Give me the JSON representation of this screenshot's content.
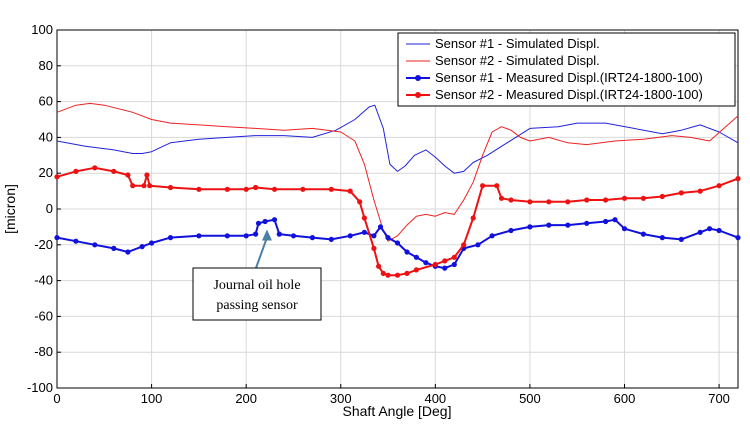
{
  "chart_data": {
    "type": "line",
    "xlabel": "Shaft Angle [Deg]",
    "ylabel": "[micron]",
    "xlim": [
      0,
      720
    ],
    "ylim": [
      -100,
      100
    ],
    "xticks": [
      0,
      100,
      200,
      300,
      400,
      500,
      600,
      700
    ],
    "yticks": [
      -100,
      -80,
      -60,
      -40,
      -20,
      0,
      20,
      40,
      60,
      80,
      100
    ],
    "grid": true,
    "legend_position": "top-right",
    "series": [
      {
        "name": "Sensor #1 - Simulated Displ.",
        "color": "#2222dd",
        "marker": false,
        "x": [
          0,
          30,
          60,
          80,
          90,
          100,
          120,
          150,
          180,
          210,
          240,
          270,
          295,
          315,
          330,
          336,
          345,
          352,
          360,
          368,
          378,
          390,
          400,
          410,
          420,
          430,
          440,
          455,
          470,
          485,
          500,
          530,
          550,
          580,
          610,
          640,
          660,
          680,
          700,
          720
        ],
        "y": [
          38,
          35,
          33,
          31,
          31,
          32,
          37,
          39,
          40,
          41,
          41,
          40,
          44,
          50,
          57,
          58,
          45,
          25,
          21,
          24,
          30,
          33,
          29,
          24,
          20,
          21,
          26,
          30,
          35,
          40,
          45,
          46,
          48,
          48,
          45,
          42,
          44,
          47,
          43,
          37
        ]
      },
      {
        "name": "Sensor #2 - Simulated Displ.",
        "color": "#ee2222",
        "marker": false,
        "x": [
          0,
          20,
          35,
          50,
          80,
          100,
          120,
          150,
          180,
          210,
          240,
          270,
          300,
          315,
          325,
          335,
          345,
          350,
          360,
          370,
          380,
          390,
          400,
          410,
          420,
          430,
          440,
          450,
          460,
          470,
          480,
          490,
          500,
          520,
          540,
          560,
          590,
          620,
          650,
          670,
          690,
          705,
          720
        ],
        "y": [
          54,
          58,
          59,
          58,
          54,
          50,
          48,
          47,
          46,
          45,
          44,
          45,
          43,
          38,
          25,
          5,
          -12,
          -18,
          -15,
          -9,
          -4,
          -3,
          -4,
          -2,
          -3,
          5,
          15,
          30,
          43,
          46,
          44,
          40,
          38,
          40,
          37,
          36,
          38,
          39,
          41,
          40,
          38,
          45,
          52
        ]
      },
      {
        "name": "Sensor #1 - Measured Displ.(IRT24-1800-100)",
        "color": "#1111dd",
        "marker": true,
        "x": [
          0,
          20,
          40,
          60,
          75,
          90,
          100,
          120,
          150,
          180,
          200,
          210,
          213,
          220,
          230,
          235,
          250,
          270,
          290,
          310,
          325,
          335,
          342,
          350,
          360,
          370,
          380,
          390,
          400,
          410,
          420,
          430,
          445,
          460,
          480,
          500,
          520,
          540,
          560,
          580,
          590,
          600,
          620,
          640,
          660,
          680,
          690,
          700,
          720
        ],
        "y": [
          -16,
          -18,
          -20,
          -22,
          -24,
          -21,
          -19,
          -16,
          -15,
          -15,
          -15,
          -14,
          -8,
          -7,
          -6,
          -14,
          -15,
          -16,
          -17,
          -15,
          -13,
          -15,
          -10,
          -16,
          -19,
          -24,
          -27,
          -30,
          -32,
          -33,
          -31,
          -22,
          -20,
          -15,
          -12,
          -10,
          -9,
          -9,
          -8,
          -7,
          -6,
          -11,
          -14,
          -16,
          -17,
          -13,
          -11,
          -12,
          -16
        ]
      },
      {
        "name": "Sensor #2 - Measured Displ.(IRT24-1800-100)",
        "color": "#ee1111",
        "marker": true,
        "x": [
          0,
          20,
          40,
          60,
          75,
          80,
          92,
          95,
          98,
          120,
          150,
          180,
          200,
          210,
          230,
          260,
          290,
          310,
          320,
          325,
          335,
          340,
          345,
          350,
          360,
          370,
          380,
          400,
          410,
          420,
          430,
          440,
          450,
          465,
          470,
          480,
          500,
          520,
          540,
          560,
          580,
          600,
          620,
          640,
          660,
          680,
          700,
          720
        ],
        "y": [
          18,
          21,
          23,
          21,
          19,
          13,
          13,
          19,
          13,
          12,
          11,
          11,
          11,
          12,
          11,
          11,
          11,
          10,
          4,
          -5,
          -22,
          -32,
          -36,
          -37,
          -37,
          -36,
          -34,
          -31,
          -29,
          -27,
          -20,
          -5,
          13,
          13,
          6,
          5,
          4,
          4,
          4,
          5,
          5,
          6,
          6,
          7,
          9,
          10,
          13,
          17
        ]
      }
    ],
    "annotations": [
      {
        "text": "Journal oil hole",
        "text_line2": "passing sensor",
        "points_to": {
          "x": 222,
          "y": -7
        }
      }
    ]
  }
}
